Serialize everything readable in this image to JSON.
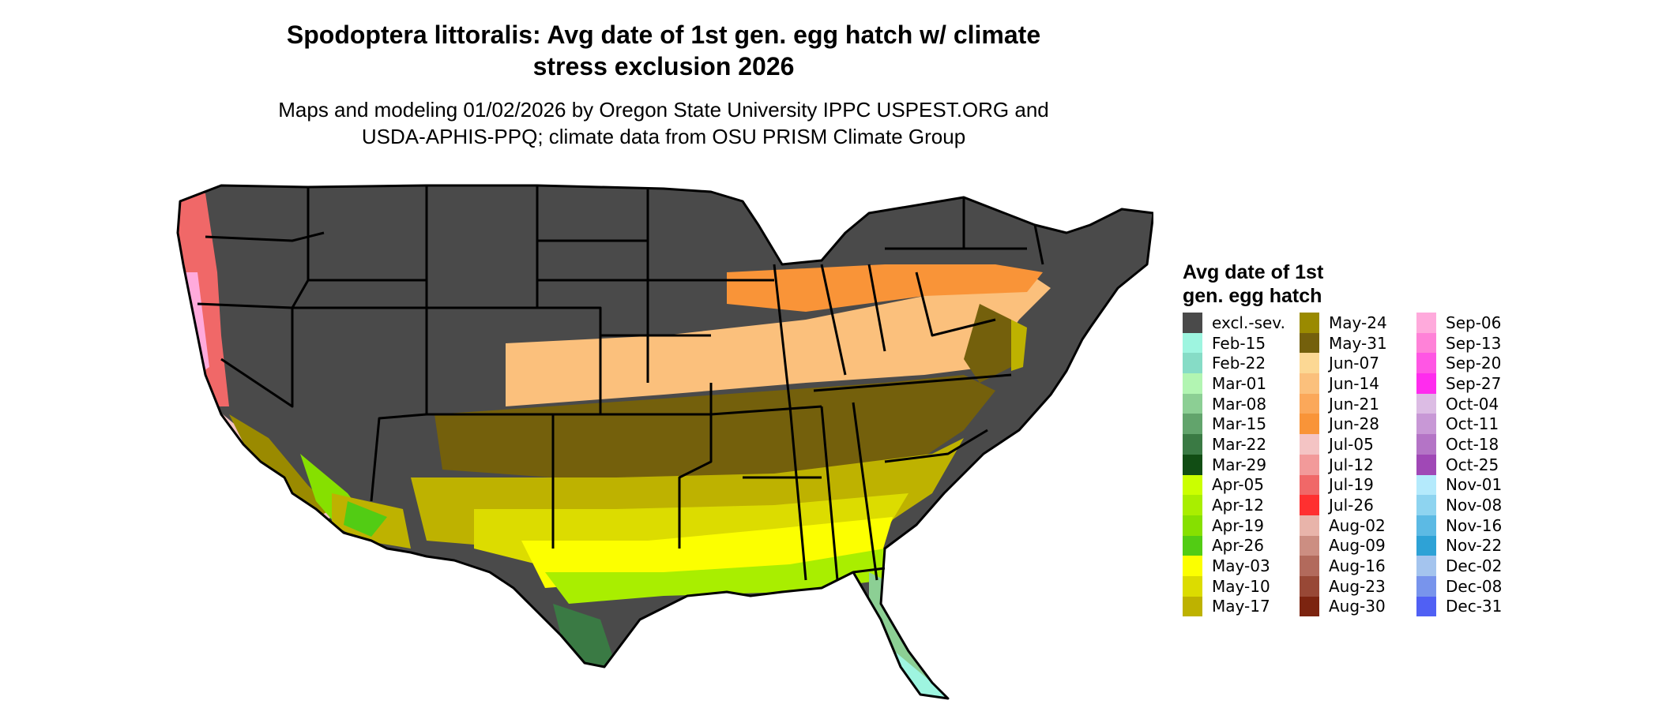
{
  "title": {
    "line1": "Spodoptera littoralis: Avg date of 1st gen. egg hatch w/ climate",
    "line2": "stress exclusion 2026"
  },
  "subtitle": {
    "line1": "Maps and modeling 01/02/2026 by Oregon State University IPPC USPEST.ORG and",
    "line2": "USDA-APHIS-PPQ; climate data from OSU PRISM Climate Group"
  },
  "legend": {
    "title_line1": "Avg date of 1st",
    "title_line2": "gen. egg hatch",
    "columns": [
      [
        {
          "label": "excl.-sev.",
          "color": "#4a4a4a"
        },
        {
          "label": "Feb-15",
          "color": "#9ef5e0"
        },
        {
          "label": "Feb-22",
          "color": "#86dcc6"
        },
        {
          "label": "Mar-01",
          "color": "#b2f5b2"
        },
        {
          "label": "Mar-08",
          "color": "#8ccf94"
        },
        {
          "label": "Mar-15",
          "color": "#62a46c"
        },
        {
          "label": "Mar-22",
          "color": "#3a7a44"
        },
        {
          "label": "Mar-29",
          "color": "#114d14"
        },
        {
          "label": "Apr-05",
          "color": "#cbff00"
        },
        {
          "label": "Apr-12",
          "color": "#a9ee00"
        },
        {
          "label": "Apr-19",
          "color": "#86e000"
        },
        {
          "label": "Apr-26",
          "color": "#52cc14"
        },
        {
          "label": "May-03",
          "color": "#fcff00"
        },
        {
          "label": "May-10",
          "color": "#dcdc00"
        },
        {
          "label": "May-17",
          "color": "#beb200"
        }
      ],
      [
        {
          "label": "May-24",
          "color": "#9a8a00"
        },
        {
          "label": "May-31",
          "color": "#74600c"
        },
        {
          "label": "Jun-07",
          "color": "#fcd894"
        },
        {
          "label": "Jun-14",
          "color": "#fbc07c"
        },
        {
          "label": "Jun-21",
          "color": "#fba85a"
        },
        {
          "label": "Jun-28",
          "color": "#f99438"
        },
        {
          "label": "Jul-05",
          "color": "#f4c4c4"
        },
        {
          "label": "Jul-12",
          "color": "#f29a9a"
        },
        {
          "label": "Jul-19",
          "color": "#f06868"
        },
        {
          "label": "Jul-26",
          "color": "#ff3030"
        },
        {
          "label": "Aug-02",
          "color": "#e8b4aa"
        },
        {
          "label": "Aug-09",
          "color": "#cc8e82"
        },
        {
          "label": "Aug-16",
          "color": "#b26a5c"
        },
        {
          "label": "Aug-23",
          "color": "#984836"
        },
        {
          "label": "Aug-30",
          "color": "#7c2410"
        }
      ],
      [
        {
          "label": "Sep-06",
          "color": "#ffaadc"
        },
        {
          "label": "Sep-13",
          "color": "#ff82d8"
        },
        {
          "label": "Sep-20",
          "color": "#ff56e4"
        },
        {
          "label": "Sep-27",
          "color": "#ff2cee"
        },
        {
          "label": "Oct-04",
          "color": "#dcbce4"
        },
        {
          "label": "Oct-11",
          "color": "#c898d6"
        },
        {
          "label": "Oct-18",
          "color": "#b474c6"
        },
        {
          "label": "Oct-25",
          "color": "#a048b6"
        },
        {
          "label": "Nov-01",
          "color": "#b4eafc"
        },
        {
          "label": "Nov-08",
          "color": "#8ed4f0"
        },
        {
          "label": "Nov-16",
          "color": "#5cbae4"
        },
        {
          "label": "Nov-22",
          "color": "#2ea2d6"
        },
        {
          "label": "Dec-02",
          "color": "#a4c4ee"
        },
        {
          "label": "Dec-08",
          "color": "#7894ec"
        },
        {
          "label": "Dec-31",
          "color": "#5060f4"
        }
      ]
    ]
  }
}
